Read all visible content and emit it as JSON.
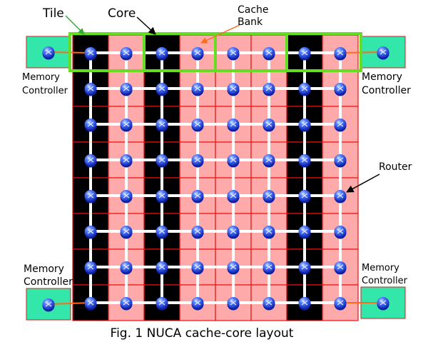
{
  "labels": {
    "tile": "Tile",
    "core": "Core",
    "cache_bank_line1": "Cache",
    "cache_bank_line2": "Bank",
    "router": "Router",
    "mc_top_left_line1": "Memory",
    "mc_top_left_line2": "Controller",
    "mc_top_right_line1": "Memory",
    "mc_top_right_line2": "Controller",
    "mc_bottom_left_line1": "Memory",
    "mc_bottom_left_line2": "Controller",
    "mc_bottom_right_line1": "Memory",
    "mc_bottom_right_line2": "Controller"
  },
  "caption": "Fig. 1 NUCA cache-core layout",
  "grid": {
    "rows": 8,
    "cols": 8,
    "column_types": [
      "core",
      "cache",
      "core",
      "cache",
      "cache",
      "cache",
      "core",
      "cache"
    ]
  },
  "colors": {
    "core": "#000000",
    "cache": "#ffaaaa",
    "cell_border": "#ee1111",
    "link": "#ffffff",
    "router_body": "#2f5bff",
    "router_dark": "#0b1fa8",
    "controller": "#33e6aa",
    "controller_border": "#cc2222",
    "controller_link": "#ff6a1a",
    "tile_outline": "#66dd22",
    "pointer": "#000000",
    "pointer_orange": "#ff6a1a",
    "pointer_green": "#33aa33"
  }
}
